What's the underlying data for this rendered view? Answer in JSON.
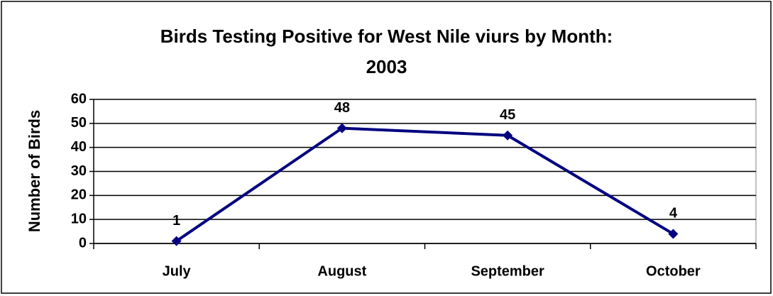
{
  "chart_data": {
    "type": "line",
    "title": "Birds Testing Positive for West Nile viurs by Month:\n2003",
    "y_label": "Number of Birds",
    "categories": [
      "July",
      "August",
      "September",
      "October"
    ],
    "series": [
      {
        "name": "Birds",
        "color": "#000080",
        "values": [
          1,
          48,
          45,
          4
        ]
      }
    ],
    "ylim": [
      0,
      60
    ],
    "yticks": [
      0,
      10,
      20,
      30,
      40,
      50,
      60
    ],
    "grid": true
  }
}
